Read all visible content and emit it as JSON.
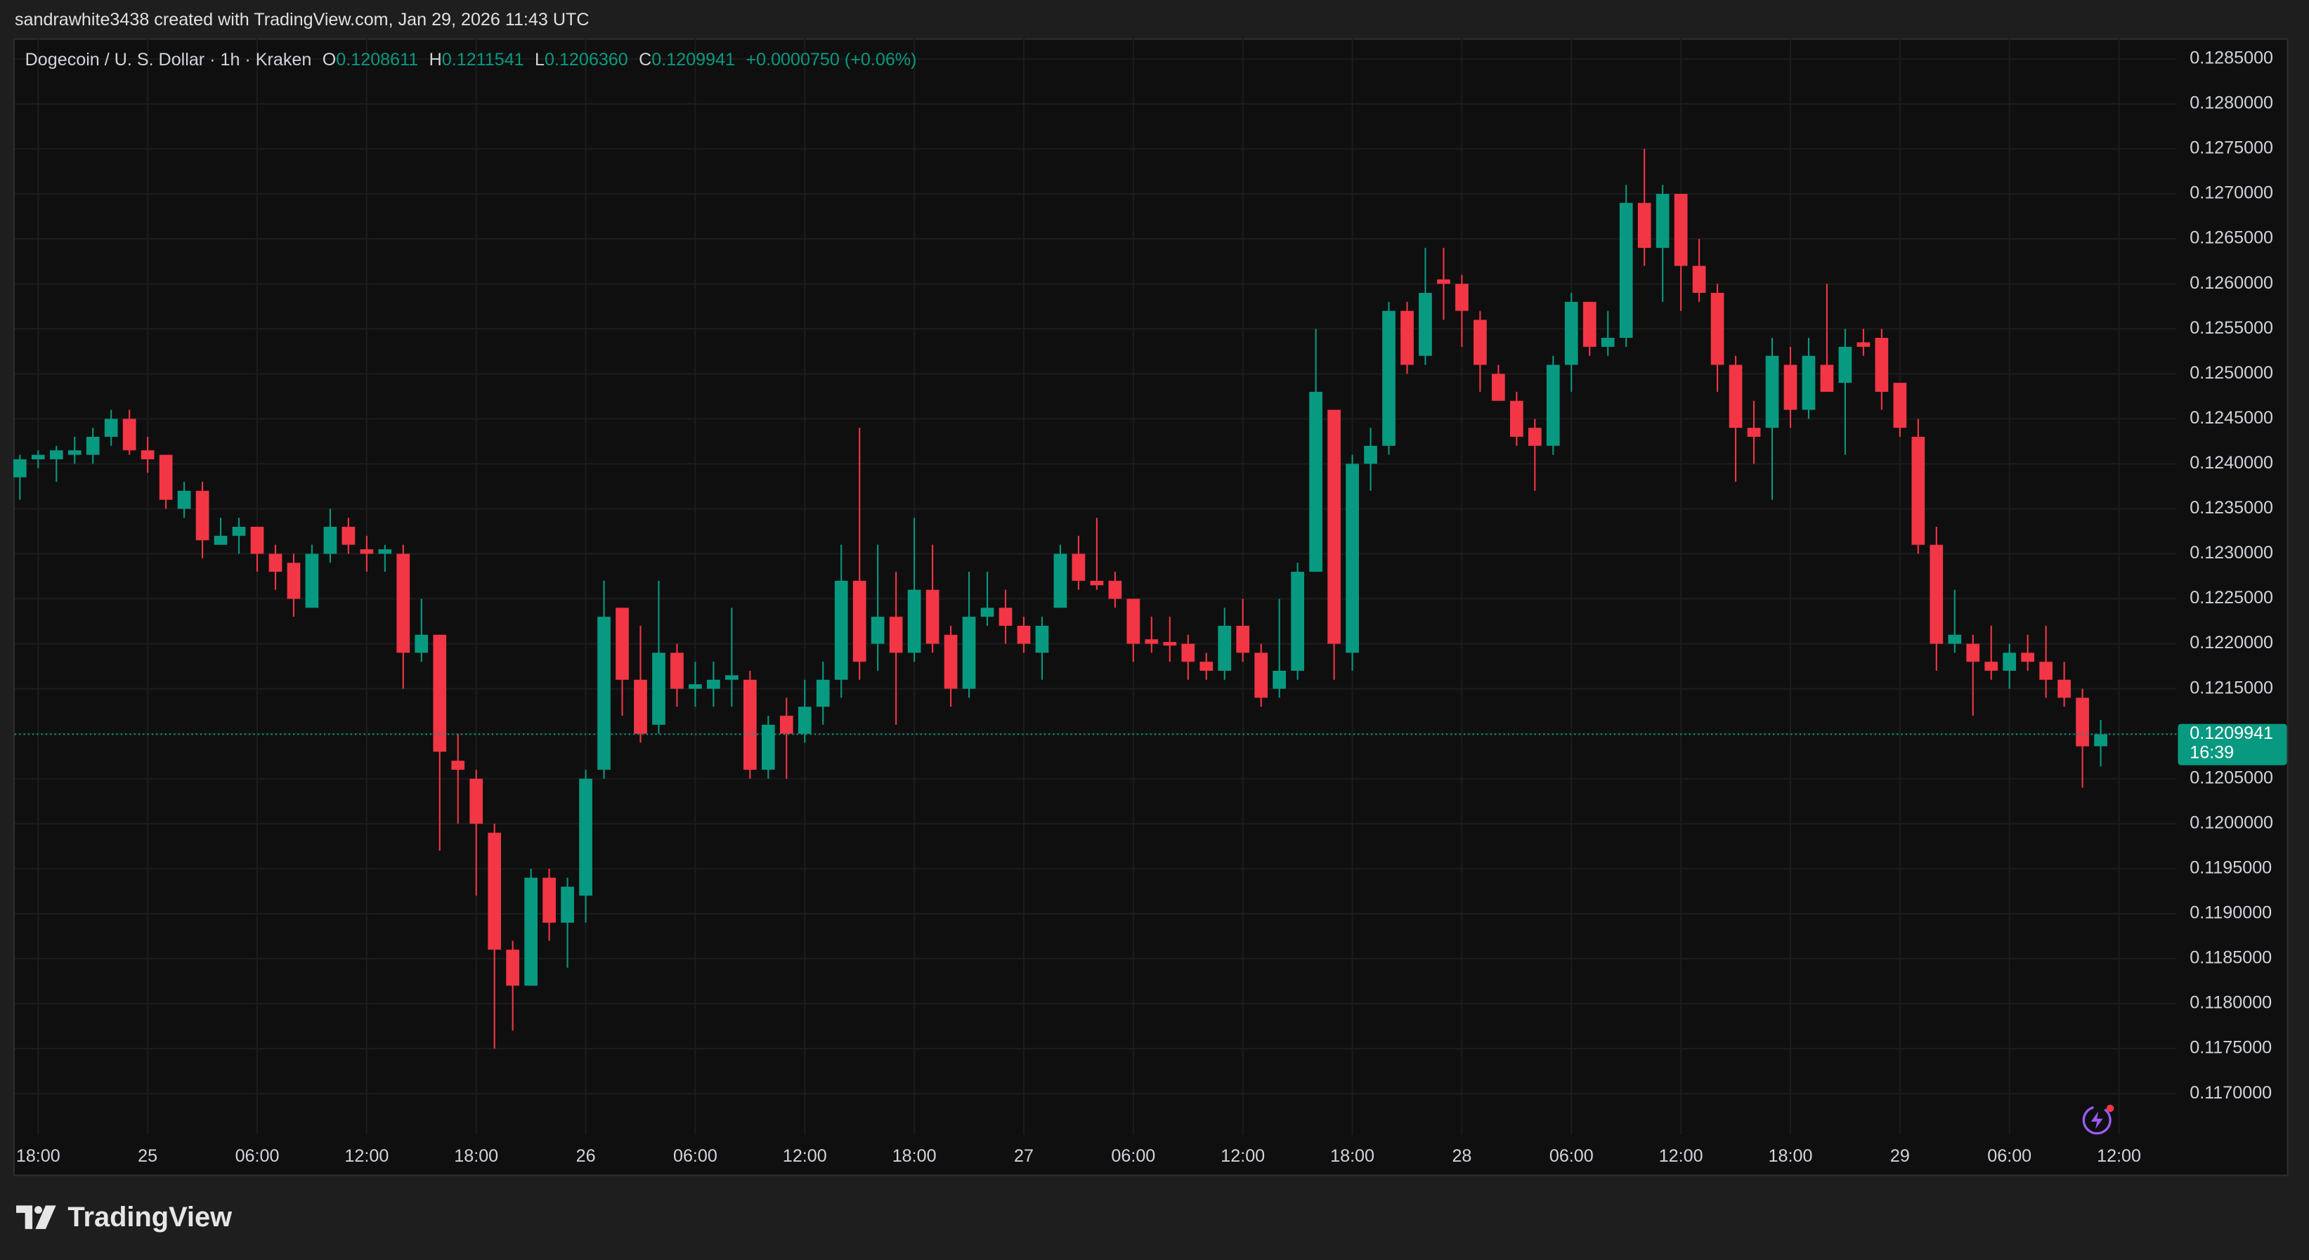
{
  "chart_data": {
    "type": "candlestick",
    "attribution": "sandrawhite3438 created with TradingView.com, Jan 29, 2026 11:43 UTC",
    "brand": "TradingView",
    "legend": {
      "symbol": "Dogecoin / U. S. Dollar · 1h · Kraken",
      "items": [
        {
          "key": "O",
          "value": "0.1208611"
        },
        {
          "key": "H",
          "value": "0.1211541"
        },
        {
          "key": "L",
          "value": "0.1206360"
        },
        {
          "key": "C",
          "value": "0.1209941"
        }
      ],
      "change": "+0.0000750 (+0.06%)"
    },
    "countdown": "16:39",
    "up_color": "#089981",
    "down_color": "#f23645",
    "grid": true,
    "x": [
      "2026-01-24T17:00",
      "2026-01-24T18:00",
      "2026-01-24T19:00",
      "2026-01-24T20:00",
      "2026-01-24T21:00",
      "2026-01-24T22:00",
      "2026-01-24T23:00",
      "2026-01-25T00:00",
      "2026-01-25T01:00",
      "2026-01-25T02:00",
      "2026-01-25T03:00",
      "2026-01-25T04:00",
      "2026-01-25T05:00",
      "2026-01-25T06:00",
      "2026-01-25T07:00",
      "2026-01-25T08:00",
      "2026-01-25T09:00",
      "2026-01-25T10:00",
      "2026-01-25T11:00",
      "2026-01-25T12:00",
      "2026-01-25T13:00",
      "2026-01-25T14:00",
      "2026-01-25T15:00",
      "2026-01-25T16:00",
      "2026-01-25T17:00",
      "2026-01-25T18:00",
      "2026-01-25T19:00",
      "2026-01-25T20:00",
      "2026-01-25T21:00",
      "2026-01-25T22:00",
      "2026-01-25T23:00",
      "2026-01-26T00:00",
      "2026-01-26T01:00",
      "2026-01-26T02:00",
      "2026-01-26T03:00",
      "2026-01-26T04:00",
      "2026-01-26T05:00",
      "2026-01-26T06:00",
      "2026-01-26T07:00",
      "2026-01-26T08:00",
      "2026-01-26T09:00",
      "2026-01-26T10:00",
      "2026-01-26T11:00",
      "2026-01-26T12:00",
      "2026-01-26T13:00",
      "2026-01-26T14:00",
      "2026-01-26T15:00",
      "2026-01-26T16:00",
      "2026-01-26T17:00",
      "2026-01-26T18:00",
      "2026-01-26T19:00",
      "2026-01-26T20:00",
      "2026-01-26T21:00",
      "2026-01-26T22:00",
      "2026-01-26T23:00",
      "2026-01-27T00:00",
      "2026-01-27T01:00",
      "2026-01-27T02:00",
      "2026-01-27T03:00",
      "2026-01-27T04:00",
      "2026-01-27T05:00",
      "2026-01-27T06:00",
      "2026-01-27T07:00",
      "2026-01-27T08:00",
      "2026-01-27T09:00",
      "2026-01-27T10:00",
      "2026-01-27T11:00",
      "2026-01-27T12:00",
      "2026-01-27T13:00",
      "2026-01-27T14:00",
      "2026-01-27T15:00",
      "2026-01-27T16:00",
      "2026-01-27T17:00",
      "2026-01-27T18:00",
      "2026-01-27T19:00",
      "2026-01-27T20:00",
      "2026-01-27T21:00",
      "2026-01-27T22:00",
      "2026-01-27T23:00",
      "2026-01-28T00:00",
      "2026-01-28T01:00",
      "2026-01-28T02:00",
      "2026-01-28T03:00",
      "2026-01-28T04:00",
      "2026-01-28T05:00",
      "2026-01-28T06:00",
      "2026-01-28T07:00",
      "2026-01-28T08:00",
      "2026-01-28T09:00",
      "2026-01-28T10:00",
      "2026-01-28T11:00",
      "2026-01-28T12:00",
      "2026-01-28T13:00",
      "2026-01-28T14:00",
      "2026-01-28T15:00",
      "2026-01-28T16:00",
      "2026-01-28T17:00",
      "2026-01-28T18:00",
      "2026-01-28T19:00",
      "2026-01-28T20:00",
      "2026-01-28T21:00",
      "2026-01-28T22:00",
      "2026-01-28T23:00",
      "2026-01-29T00:00",
      "2026-01-29T01:00",
      "2026-01-29T02:00",
      "2026-01-29T03:00",
      "2026-01-29T04:00",
      "2026-01-29T05:00",
      "2026-01-29T06:00",
      "2026-01-29T07:00",
      "2026-01-29T08:00",
      "2026-01-29T09:00",
      "2026-01-29T10:00",
      "2026-01-29T11:00"
    ],
    "open": [
      0.12385,
      0.12405,
      0.12405,
      0.1241,
      0.1241,
      0.1243,
      0.1245,
      0.12415,
      0.1241,
      0.1235,
      0.1237,
      0.1231,
      0.1232,
      0.1233,
      0.123,
      0.1229,
      0.1224,
      0.123,
      0.1233,
      0.12305,
      0.123,
      0.123,
      0.1219,
      0.1221,
      0.1207,
      0.1205,
      0.1199,
      0.1186,
      0.1182,
      0.1194,
      0.1189,
      0.1192,
      0.1206,
      0.1224,
      0.1216,
      0.1211,
      0.1219,
      0.1215,
      0.1215,
      0.1216,
      0.1216,
      0.1206,
      0.1212,
      0.121,
      0.1213,
      0.1216,
      0.1227,
      0.122,
      0.1223,
      0.1219,
      0.1226,
      0.1221,
      0.1215,
      0.1223,
      0.1224,
      0.1222,
      0.1219,
      0.1224,
      0.123,
      0.1227,
      0.1227,
      0.1225,
      0.12205,
      0.12202,
      0.122,
      0.1218,
      0.1217,
      0.1222,
      0.1219,
      0.1215,
      0.1217,
      0.1228,
      0.1246,
      0.1219,
      0.124,
      0.1242,
      0.1257,
      0.1252,
      0.12605,
      0.126,
      0.1256,
      0.125,
      0.1247,
      0.1244,
      0.1242,
      0.1251,
      0.1258,
      0.1253,
      0.1254,
      0.1269,
      0.1264,
      0.127,
      0.1262,
      0.1259,
      0.1251,
      0.1244,
      0.1244,
      0.1251,
      0.1246,
      0.1251,
      0.1249,
      0.12535,
      0.1254,
      0.1249,
      0.1243,
      0.1231,
      0.122,
      0.122,
      0.1218,
      0.1217,
      0.1219,
      0.1218,
      0.1216,
      0.1214,
      0.1208611
    ],
    "high": [
      0.1241,
      0.12415,
      0.1242,
      0.1243,
      0.1244,
      0.1246,
      0.1246,
      0.1243,
      0.1241,
      0.1238,
      0.1238,
      0.1234,
      0.1234,
      0.1233,
      0.1231,
      0.123,
      0.1231,
      0.1235,
      0.1234,
      0.1232,
      0.1231,
      0.1231,
      0.1225,
      0.1221,
      0.121,
      0.1206,
      0.12,
      0.1187,
      0.1195,
      0.1195,
      0.1194,
      0.1206,
      0.1227,
      0.1224,
      0.1222,
      0.1227,
      0.122,
      0.1218,
      0.1218,
      0.1224,
      0.1217,
      0.1212,
      0.1214,
      0.1216,
      0.1218,
      0.1231,
      0.1244,
      0.1231,
      0.1228,
      0.1234,
      0.1231,
      0.1222,
      0.1228,
      0.1228,
      0.1226,
      0.1223,
      0.1223,
      0.1231,
      0.1232,
      0.1234,
      0.1228,
      0.1225,
      0.1223,
      0.1223,
      0.1221,
      0.1219,
      0.1224,
      0.1225,
      0.122,
      0.1225,
      0.1229,
      0.1255,
      0.1246,
      0.1241,
      0.1244,
      0.1258,
      0.1258,
      0.1264,
      0.1264,
      0.1261,
      0.1257,
      0.1251,
      0.1248,
      0.1245,
      0.1252,
      0.1259,
      0.1258,
      0.1257,
      0.1271,
      0.1275,
      0.1271,
      0.127,
      0.1265,
      0.126,
      0.1252,
      0.1247,
      0.1254,
      0.1253,
      0.1254,
      0.126,
      0.1255,
      0.1255,
      0.1255,
      0.1249,
      0.1245,
      0.1233,
      0.1226,
      0.1221,
      0.1222,
      0.122,
      0.1221,
      0.1222,
      0.1218,
      0.1215,
      0.1211541
    ],
    "low": [
      0.1236,
      0.12395,
      0.1238,
      0.124,
      0.124,
      0.1242,
      0.1241,
      0.1239,
      0.1235,
      0.1234,
      0.12295,
      0.1231,
      0.123,
      0.1228,
      0.1226,
      0.1223,
      0.1224,
      0.1229,
      0.123,
      0.1228,
      0.1228,
      0.1215,
      0.1218,
      0.1197,
      0.12,
      0.1192,
      0.1175,
      0.1177,
      0.1182,
      0.1187,
      0.1184,
      0.1189,
      0.1205,
      0.1212,
      0.1209,
      0.121,
      0.1213,
      0.1213,
      0.1213,
      0.1213,
      0.1205,
      0.1205,
      0.1205,
      0.1209,
      0.1211,
      0.1214,
      0.1216,
      0.1217,
      0.1211,
      0.1218,
      0.1219,
      0.1213,
      0.1214,
      0.1222,
      0.122,
      0.1219,
      0.1216,
      0.1224,
      0.1226,
      0.1226,
      0.1224,
      0.1218,
      0.1219,
      0.1218,
      0.1216,
      0.1216,
      0.1216,
      0.1218,
      0.1213,
      0.1214,
      0.1216,
      0.1228,
      0.1216,
      0.1217,
      0.1237,
      0.1241,
      0.125,
      0.1251,
      0.1256,
      0.1253,
      0.1248,
      0.1247,
      0.1242,
      0.1237,
      0.1241,
      0.1248,
      0.1252,
      0.1252,
      0.1253,
      0.1262,
      0.1258,
      0.1257,
      0.1258,
      0.1248,
      0.1238,
      0.124,
      0.1236,
      0.1244,
      0.1245,
      0.1248,
      0.1241,
      0.1252,
      0.1246,
      0.1243,
      0.123,
      0.1217,
      0.1219,
      0.1212,
      0.1216,
      0.1215,
      0.1217,
      0.1214,
      0.1213,
      0.1204,
      0.120636
    ],
    "close": [
      0.12405,
      0.1241,
      0.12415,
      0.12415,
      0.1243,
      0.1245,
      0.12415,
      0.12405,
      0.1236,
      0.1237,
      0.12315,
      0.1232,
      0.1233,
      0.123,
      0.1228,
      0.1225,
      0.123,
      0.1233,
      0.1231,
      0.123,
      0.12305,
      0.1219,
      0.1221,
      0.1208,
      0.1206,
      0.12,
      0.1186,
      0.1182,
      0.1194,
      0.1189,
      0.1193,
      0.1205,
      0.1223,
      0.1216,
      0.121,
      0.1219,
      0.1215,
      0.12155,
      0.1216,
      0.12165,
      0.1206,
      0.1211,
      0.121,
      0.1213,
      0.1216,
      0.1227,
      0.1218,
      0.1223,
      0.1219,
      0.1226,
      0.122,
      0.1215,
      0.1223,
      0.1224,
      0.1222,
      0.122,
      0.1222,
      0.123,
      0.1227,
      0.12265,
      0.1225,
      0.122,
      0.122,
      0.12198,
      0.1218,
      0.1217,
      0.1222,
      0.1219,
      0.1214,
      0.1217,
      0.1228,
      0.1248,
      0.122,
      0.124,
      0.1242,
      0.1257,
      0.1251,
      0.1259,
      0.126,
      0.1257,
      0.1251,
      0.1247,
      0.1243,
      0.1242,
      0.1251,
      0.1258,
      0.1253,
      0.1254,
      0.1269,
      0.1264,
      0.127,
      0.1262,
      0.1259,
      0.1251,
      0.1244,
      0.1243,
      0.1252,
      0.1246,
      0.1252,
      0.1248,
      0.1253,
      0.1253,
      0.1248,
      0.1244,
      0.1231,
      0.122,
      0.1221,
      0.1218,
      0.1217,
      0.1219,
      0.1218,
      0.1216,
      0.1214,
      0.12086,
      0.1209941
    ],
    "xlim": [
      "2026-01-24T16:43",
      "2026-01-29T15:09"
    ],
    "xticks": [
      {
        "value": "2026-01-24T18:00",
        "label": "18:00"
      },
      {
        "value": "2026-01-25T00:00",
        "label": "25"
      },
      {
        "value": "2026-01-25T06:00",
        "label": "06:00"
      },
      {
        "value": "2026-01-25T12:00",
        "label": "12:00"
      },
      {
        "value": "2026-01-25T18:00",
        "label": "18:00"
      },
      {
        "value": "2026-01-26T00:00",
        "label": "26"
      },
      {
        "value": "2026-01-26T06:00",
        "label": "06:00"
      },
      {
        "value": "2026-01-26T12:00",
        "label": "12:00"
      },
      {
        "value": "2026-01-26T18:00",
        "label": "18:00"
      },
      {
        "value": "2026-01-27T00:00",
        "label": "27"
      },
      {
        "value": "2026-01-27T06:00",
        "label": "06:00"
      },
      {
        "value": "2026-01-27T12:00",
        "label": "12:00"
      },
      {
        "value": "2026-01-27T18:00",
        "label": "18:00"
      },
      {
        "value": "2026-01-28T00:00",
        "label": "28"
      },
      {
        "value": "2026-01-28T06:00",
        "label": "06:00"
      },
      {
        "value": "2026-01-28T12:00",
        "label": "12:00"
      },
      {
        "value": "2026-01-28T18:00",
        "label": "18:00"
      },
      {
        "value": "2026-01-29T00:00",
        "label": "29"
      },
      {
        "value": "2026-01-29T06:00",
        "label": "06:00"
      },
      {
        "value": "2026-01-29T12:00",
        "label": "12:00"
      }
    ],
    "ylim": [
      0.116542,
      0.128729
    ],
    "yticks": [
      {
        "value": 0.1285,
        "label": "0.1285000"
      },
      {
        "value": 0.128,
        "label": "0.1280000"
      },
      {
        "value": 0.1275,
        "label": "0.1275000"
      },
      {
        "value": 0.127,
        "label": "0.1270000"
      },
      {
        "value": 0.1265,
        "label": "0.1265000"
      },
      {
        "value": 0.126,
        "label": "0.1260000"
      },
      {
        "value": 0.1255,
        "label": "0.1255000"
      },
      {
        "value": 0.125,
        "label": "0.1250000"
      },
      {
        "value": 0.1245,
        "label": "0.1245000"
      },
      {
        "value": 0.124,
        "label": "0.1240000"
      },
      {
        "value": 0.1235,
        "label": "0.1235000"
      },
      {
        "value": 0.123,
        "label": "0.1230000"
      },
      {
        "value": 0.1225,
        "label": "0.1225000"
      },
      {
        "value": 0.122,
        "label": "0.1220000"
      },
      {
        "value": 0.1215,
        "label": "0.1215000"
      },
      {
        "value": 0.121,
        "label": "0.1210000"
      },
      {
        "value": 0.1205,
        "label": "0.1205000"
      },
      {
        "value": 0.12,
        "label": "0.1200000"
      },
      {
        "value": 0.1195,
        "label": "0.1195000"
      },
      {
        "value": 0.119,
        "label": "0.1190000"
      },
      {
        "value": 0.1185,
        "label": "0.1185000"
      },
      {
        "value": 0.118,
        "label": "0.1180000"
      },
      {
        "value": 0.1175,
        "label": "0.1175000"
      },
      {
        "value": 0.117,
        "label": "0.1170000"
      }
    ]
  }
}
